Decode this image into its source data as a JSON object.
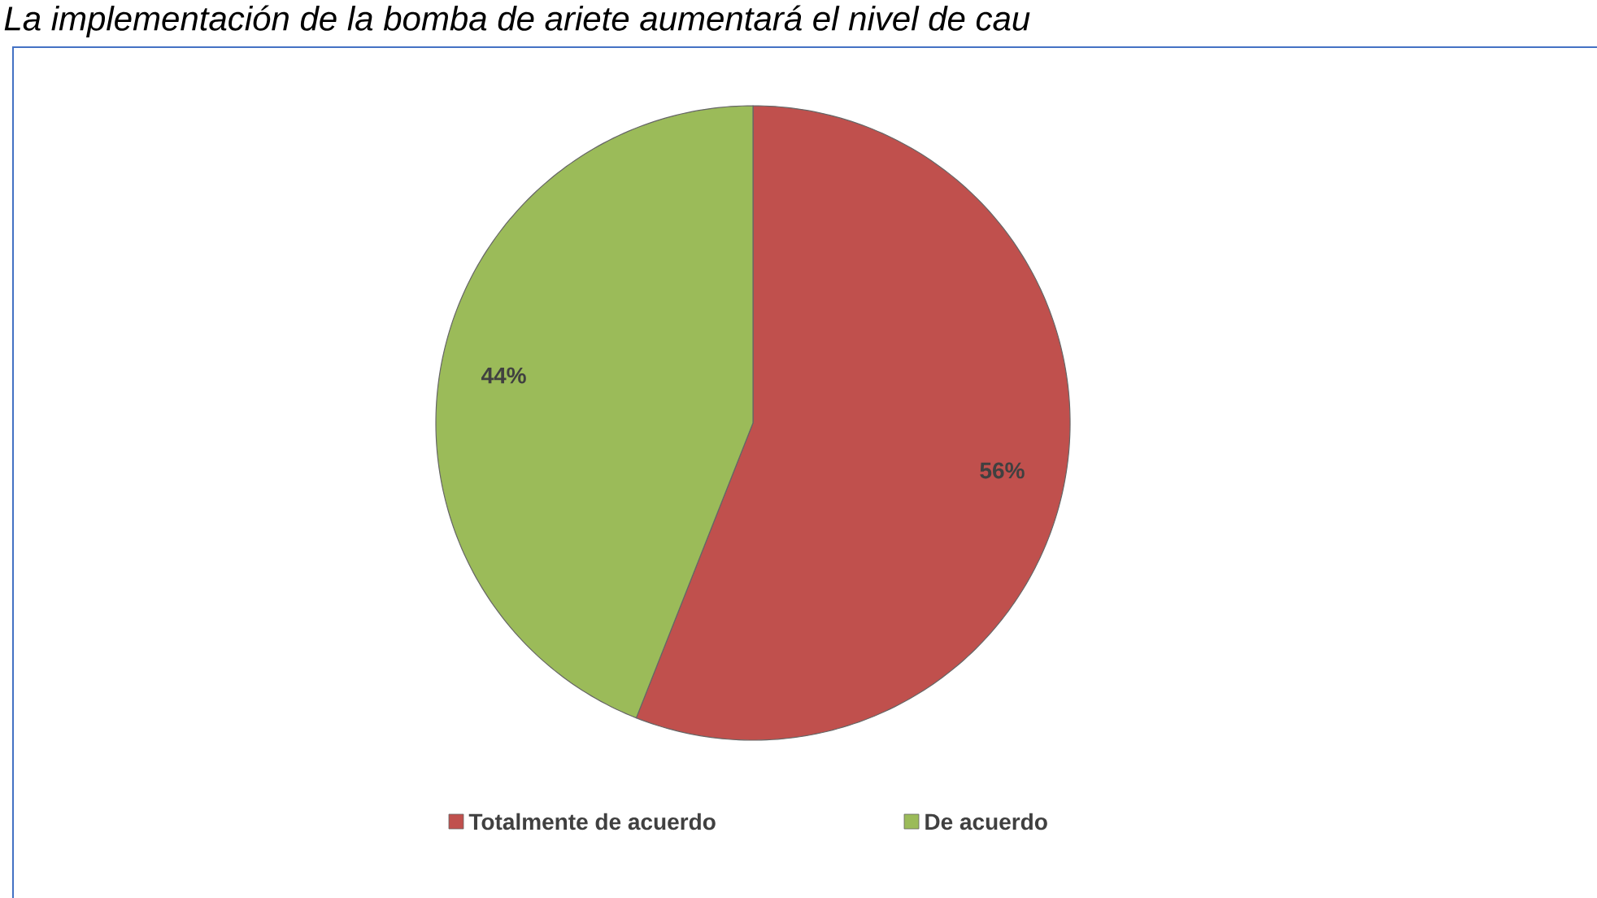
{
  "chart_data": {
    "type": "pie",
    "title": "La implementación de la bomba de ariete aumentará el nivel de cau",
    "categories": [
      "Totalmente de acuerdo",
      "De acuerdo"
    ],
    "values": [
      56,
      44
    ],
    "colors": [
      "#c0504d",
      "#9bbb59"
    ],
    "data_labels": true,
    "value_labels": [
      "56%",
      "44%"
    ],
    "legend": "bottom"
  }
}
